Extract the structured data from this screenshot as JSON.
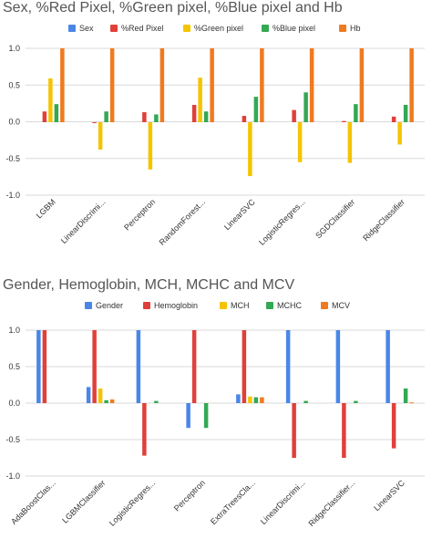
{
  "chart_data": [
    {
      "type": "bar",
      "title": "Sex, %Red Pixel, %Green pixel, %Blue pixel and Hb",
      "categories": [
        "LGBM",
        "LinearDiscrimi...",
        "Perceptron",
        "RandomForest...",
        "LinearSVC",
        "LogisticRegres...",
        "SGDClassifier",
        "RidgeClassifier"
      ],
      "ylim": [
        -1.0,
        1.0
      ],
      "yticks": [
        "1.0",
        "0.5",
        "0.0",
        "-0.5",
        "-1.0"
      ],
      "grid": true,
      "legend_position": "top",
      "series": [
        {
          "name": "Sex",
          "color": "#4a86e8",
          "values": [
            0,
            0,
            0,
            0,
            0,
            0,
            0,
            0
          ]
        },
        {
          "name": "%Red Pixel",
          "color": "#e0403a",
          "values": [
            0.14,
            -0.01,
            0.13,
            0.23,
            0.08,
            0.16,
            0.01,
            0.07
          ]
        },
        {
          "name": "%Green pixel",
          "color": "#f5c400",
          "values": [
            0.59,
            -0.38,
            -0.65,
            0.6,
            -0.74,
            -0.55,
            -0.56,
            -0.31
          ]
        },
        {
          "name": "%Blue pixel",
          "color": "#34a853",
          "values": [
            0.24,
            0.14,
            0.1,
            0.14,
            0.34,
            0.4,
            0.24,
            0.23
          ]
        },
        {
          "name": "Hb",
          "color": "#f07a1f",
          "values": [
            1.0,
            1.0,
            1.0,
            1.0,
            1.0,
            1.0,
            1.0,
            1.0
          ]
        }
      ]
    },
    {
      "type": "bar",
      "title": "Gender, Hemoglobin, MCH, MCHC and MCV",
      "categories": [
        "AdaBoostClas...",
        "LGBMClassifier",
        "LogisticRegres...",
        "Perceptron",
        "ExtraTreesCla...",
        "LinearDiscrimi...",
        "RidgeClassifier...",
        "LinearSVC"
      ],
      "ylim": [
        -1.0,
        1.0
      ],
      "yticks": [
        "1.0",
        "0.5",
        "0.0",
        "-0.5",
        "-1.0"
      ],
      "grid": true,
      "legend_position": "top",
      "series": [
        {
          "name": "Gender",
          "color": "#4a86e8",
          "values": [
            1.0,
            0.22,
            1.0,
            -0.34,
            0.12,
            1.0,
            1.0,
            1.0
          ]
        },
        {
          "name": "Hemoglobin",
          "color": "#e0403a",
          "values": [
            1.0,
            1.0,
            -0.72,
            1.0,
            1.0,
            -0.75,
            -0.75,
            -0.62
          ]
        },
        {
          "name": "MCH",
          "color": "#f5c400",
          "values": [
            0,
            0.2,
            0,
            0,
            0.09,
            0,
            0,
            0
          ]
        },
        {
          "name": "MCHC",
          "color": "#34a853",
          "values": [
            0,
            0.04,
            0.03,
            -0.34,
            0.08,
            0.03,
            0.03,
            0.2
          ]
        },
        {
          "name": "MCV",
          "color": "#f07a1f",
          "values": [
            0,
            0.05,
            0,
            0,
            0.08,
            0,
            0,
            0.01
          ]
        }
      ]
    }
  ]
}
